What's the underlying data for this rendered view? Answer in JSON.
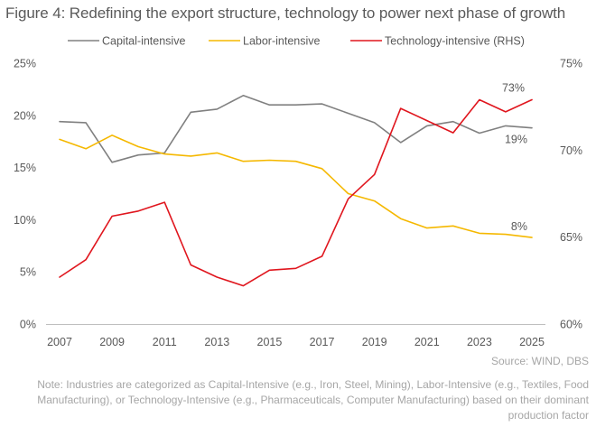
{
  "title": "Figure 4:  Redefining the export structure, technology to power next phase of growth",
  "chart_data": {
    "type": "line",
    "x": [
      2007,
      2008,
      2009,
      2010,
      2011,
      2012,
      2013,
      2014,
      2015,
      2016,
      2017,
      2018,
      2019,
      2020,
      2021,
      2022,
      2023,
      2024,
      2025
    ],
    "x_ticks": [
      "2007",
      "2009",
      "2011",
      "2013",
      "2015",
      "2017",
      "2019",
      "2021",
      "2023",
      "2025"
    ],
    "xlim": [
      2007,
      2025
    ],
    "y_left": {
      "ylim": [
        0,
        25
      ],
      "ticks": [
        "0%",
        "5%",
        "10%",
        "15%",
        "20%",
        "25%"
      ]
    },
    "y_right": {
      "ylim": [
        60,
        75
      ],
      "ticks": [
        "60%",
        "65%",
        "70%",
        "75%"
      ]
    },
    "series": [
      {
        "name": "Capital-intensive",
        "color": "#808080",
        "axis": "left",
        "values": [
          19.4,
          19.3,
          15.5,
          16.2,
          16.4,
          20.3,
          20.6,
          21.9,
          21.0,
          21.0,
          21.1,
          20.2,
          19.3,
          17.4,
          19.0,
          19.4,
          18.3,
          19.0,
          18.8
        ],
        "end_label": "19%"
      },
      {
        "name": "Labor-intensive",
        "color": "#f5b800",
        "axis": "left",
        "values": [
          17.7,
          16.8,
          18.1,
          17.0,
          16.3,
          16.1,
          16.4,
          15.6,
          15.7,
          15.6,
          14.9,
          12.5,
          11.8,
          10.1,
          9.2,
          9.4,
          8.7,
          8.6,
          8.3
        ],
        "end_label": "8%"
      },
      {
        "name": "Technology-intensive (RHS)",
        "color": "#e0161e",
        "axis": "right",
        "values": [
          62.7,
          63.7,
          66.2,
          66.5,
          67.0,
          63.4,
          62.7,
          62.2,
          63.1,
          63.2,
          63.9,
          67.2,
          68.6,
          72.4,
          71.7,
          71.0,
          72.9,
          72.2,
          72.9
        ],
        "end_label": "73%"
      }
    ]
  },
  "source": "Source: WIND, DBS",
  "note": "Note: Industries are categorized as Capital-Intensive (e.g., Iron, Steel, Mining), Labor-Intensive (e.g., Textiles, Food Manufacturing), or Technology-Intensive (e.g., Pharmaceuticals, Computer Manufacturing) based on their dominant production factor"
}
